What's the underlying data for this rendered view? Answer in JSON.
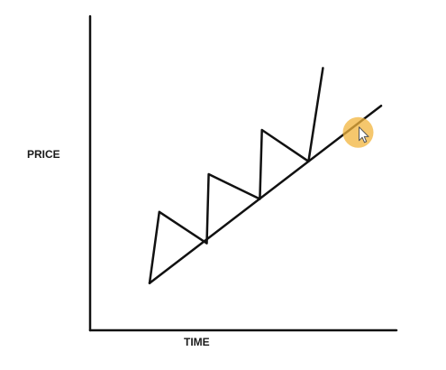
{
  "chart_data": {
    "type": "line",
    "title": "",
    "xlabel": "TIME",
    "ylabel": "PRICE",
    "xlim": [
      0,
      100
    ],
    "ylim": [
      0,
      100
    ],
    "grid": false,
    "legend": "none",
    "series": [
      {
        "role": "price-path",
        "points": [
          [
            19.4,
            15.0
          ],
          [
            22.6,
            37.7
          ],
          [
            38.1,
            27.7
          ],
          [
            38.7,
            49.7
          ],
          [
            55.4,
            41.8
          ],
          [
            56.1,
            63.8
          ],
          [
            71.3,
            53.8
          ],
          [
            76.0,
            83.5
          ]
        ]
      },
      {
        "role": "support-trendline",
        "points": [
          [
            19.4,
            15.0
          ],
          [
            95.0,
            71.5
          ]
        ]
      }
    ]
  },
  "cursor": {
    "highlight_color": "#f2b43c",
    "icon": "mouse-pointer-icon",
    "x": 87.5,
    "y": 63.0
  },
  "colors": {
    "line": "#111111",
    "axis": "#111111",
    "background": "#ffffff"
  }
}
